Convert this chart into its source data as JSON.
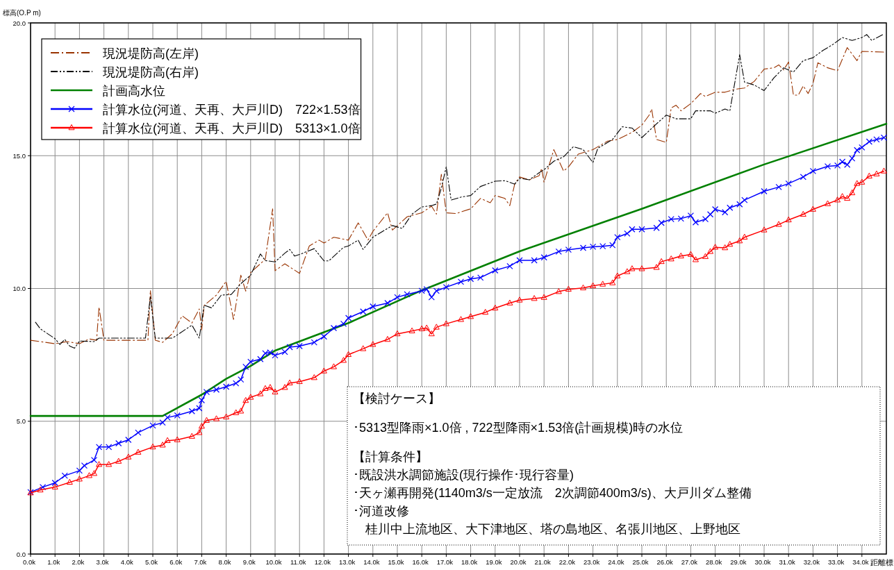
{
  "chart_data": {
    "type": "line",
    "xlabel": "距離標",
    "ylabel": "標高(O.P m)",
    "xlim": [
      0,
      35
    ],
    "ylim": [
      0,
      20
    ],
    "xticks": [
      {
        "value": 0,
        "label": "0.0k"
      },
      {
        "value": 1,
        "label": "1.0k"
      },
      {
        "value": 2,
        "label": "2.0k"
      },
      {
        "value": 3,
        "label": "3.0k"
      },
      {
        "value": 4,
        "label": "4.0k"
      },
      {
        "value": 5,
        "label": "5.0k"
      },
      {
        "value": 6,
        "label": "6.0k"
      },
      {
        "value": 7,
        "label": "7.0k"
      },
      {
        "value": 8,
        "label": "8.0k"
      },
      {
        "value": 9,
        "label": "9.0k"
      },
      {
        "value": 10,
        "label": "10.0k"
      },
      {
        "value": 11,
        "label": "11.0k"
      },
      {
        "value": 12,
        "label": "12.0k"
      },
      {
        "value": 13,
        "label": "13.0k"
      },
      {
        "value": 14,
        "label": "14.0k"
      },
      {
        "value": 15,
        "label": "15.0k"
      },
      {
        "value": 16,
        "label": "16.0k"
      },
      {
        "value": 17,
        "label": "17.0k"
      },
      {
        "value": 18,
        "label": "18.0k"
      },
      {
        "value": 19,
        "label": "19.0k"
      },
      {
        "value": 20,
        "label": "20.0k"
      },
      {
        "value": 21,
        "label": "21.0k"
      },
      {
        "value": 22,
        "label": "22.0k"
      },
      {
        "value": 23,
        "label": "23.0k"
      },
      {
        "value": 24,
        "label": "24.0k"
      },
      {
        "value": 25,
        "label": "25.0k"
      },
      {
        "value": 26,
        "label": "26.0k"
      },
      {
        "value": 27,
        "label": "27.0k"
      },
      {
        "value": 28,
        "label": "28.0k"
      },
      {
        "value": 29,
        "label": "29.0k"
      },
      {
        "value": 30,
        "label": "30.0k"
      },
      {
        "value": 31,
        "label": "31.0k"
      },
      {
        "value": 32,
        "label": "32.0k"
      },
      {
        "value": 33,
        "label": "33.0k"
      },
      {
        "value": 34,
        "label": "34.0k"
      }
    ],
    "yticks": [
      {
        "value": 0,
        "label": "0.0"
      },
      {
        "value": 5,
        "label": "5.0"
      },
      {
        "value": 10,
        "label": "10.0"
      },
      {
        "value": 15,
        "label": "15.0"
      },
      {
        "value": 20,
        "label": "20.0"
      }
    ],
    "grid": true,
    "legend": "top left",
    "series": [
      {
        "name": "現況堤防高(左岸)",
        "color": "#993300",
        "line_style": "dashed",
        "marker": "none",
        "x": [
          0,
          1,
          1.5,
          2,
          2.4,
          2.7,
          2.8,
          3,
          4,
          4.8,
          4.9,
          5.1,
          5.4,
          5.8,
          6.2,
          6.6,
          6.9,
          7,
          7.1,
          7.6,
          8,
          8.3,
          8.6,
          8.8,
          9,
          9.6,
          9.9,
          10,
          10.4,
          11,
          11.4,
          11.8,
          12,
          12.4,
          13,
          13.4,
          13.8,
          14,
          14.6,
          14.8,
          15.4,
          16,
          16.4,
          16.6,
          16.8,
          17,
          17.4,
          18,
          18.4,
          18.8,
          19,
          19.4,
          19.6,
          19.8,
          20,
          20.4,
          20.8,
          20.9,
          21,
          21.4,
          21.8,
          22,
          22.4,
          23,
          23.6,
          24,
          24.6,
          25,
          25.3,
          25.4,
          25.6,
          26,
          26.2,
          26.4,
          26.6,
          27,
          27.4,
          27.6,
          28,
          28.4,
          28.8,
          29.2,
          29.6,
          30,
          30.4,
          30.6,
          30.8,
          31,
          31.2,
          31.4,
          31.6,
          31.8,
          32,
          32.2,
          32.6,
          33,
          33.4,
          33.8,
          34,
          34.9
        ],
        "values": [
          8.05,
          7.92,
          8.0,
          7.92,
          8.1,
          8.05,
          9.3,
          8.05,
          8.05,
          8.05,
          9.93,
          8.05,
          7.97,
          8.3,
          8.97,
          8.7,
          9.23,
          8.44,
          9.36,
          9.75,
          10.27,
          8.83,
          10.5,
          9.9,
          10.6,
          11.1,
          13.0,
          10.67,
          10.93,
          10.57,
          11.6,
          11.82,
          11.71,
          11.93,
          11.82,
          12.47,
          11.82,
          12.15,
          12.85,
          12.2,
          12.7,
          12.85,
          13.1,
          12.8,
          14.3,
          12.85,
          12.82,
          13.0,
          13.39,
          13.23,
          13.5,
          13.39,
          13.12,
          13.93,
          14.2,
          14.09,
          14.25,
          14.52,
          14.0,
          15.23,
          14.42,
          14.58,
          15.06,
          15.23,
          15.55,
          15.61,
          15.88,
          16.15,
          16.53,
          16.76,
          15.61,
          15.5,
          16.8,
          16.9,
          16.69,
          16.96,
          17.34,
          17.23,
          17.39,
          17.39,
          17.5,
          17.55,
          17.8,
          18.26,
          18.31,
          18.42,
          18.23,
          18.53,
          17.28,
          17.28,
          17.63,
          17.34,
          17.72,
          18.5,
          18.31,
          18.2,
          19.07,
          18.58,
          18.93,
          18.9
        ]
      },
      {
        "name": "現況堤防高(右岸)",
        "color": "#000000",
        "line_style": "dotted",
        "marker": "none",
        "x": [
          0.2,
          0.4,
          1,
          1.2,
          1.4,
          1.6,
          1.8,
          2,
          2.6,
          2.8,
          4.7,
          4.9,
          5.1,
          5.8,
          6.6,
          6.9,
          7.1,
          7.4,
          7.8,
          8.2,
          8.6,
          9,
          9.4,
          9.6,
          10,
          10.4,
          10.6,
          10.8,
          11,
          11.6,
          12,
          12.2,
          12.8,
          13,
          13.4,
          13.6,
          14,
          14.4,
          14.8,
          15.2,
          15.6,
          16,
          16.4,
          16.6,
          16.8,
          17,
          17.2,
          17.6,
          18,
          18.4,
          19,
          19.4,
          19.8,
          20,
          20.4,
          20.8,
          21,
          21.4,
          21.8,
          22.2,
          22.6,
          23,
          23.2,
          23.8,
          24.2,
          24.6,
          25,
          25.6,
          26,
          26.4,
          27,
          27.2,
          27.8,
          28,
          28.4,
          28.6,
          29,
          29.2,
          29.6,
          30,
          30.4,
          30.8,
          31.2,
          31.6,
          32,
          32.4,
          32.8,
          33.2,
          33.6,
          34,
          34.2,
          34.4,
          34.9
        ],
        "values": [
          8.73,
          8.48,
          8.11,
          7.89,
          8.08,
          7.83,
          7.75,
          8.02,
          8.0,
          8.13,
          8.13,
          9.7,
          8.13,
          8.13,
          8.62,
          8.13,
          9.37,
          9.27,
          9.75,
          9.77,
          10.18,
          10.5,
          11.3,
          11.05,
          11.0,
          11.33,
          11.47,
          11.22,
          11.28,
          11.5,
          11.04,
          11.04,
          11.55,
          11.6,
          11.82,
          11.47,
          11.93,
          12.15,
          12.37,
          12.26,
          12.8,
          13.07,
          13.12,
          13.18,
          13.78,
          14.58,
          13.33,
          13.44,
          13.5,
          13.84,
          14.04,
          14.06,
          13.93,
          14.15,
          14.09,
          14.36,
          14.47,
          14.79,
          14.96,
          15.34,
          15.23,
          14.74,
          15.28,
          15.61,
          16.09,
          16.04,
          15.68,
          16.2,
          16.53,
          16.39,
          16.39,
          16.69,
          16.69,
          16.6,
          16.76,
          16.69,
          18.8,
          17.77,
          17.66,
          17.45,
          17.93,
          18.31,
          18.15,
          18.58,
          18.69,
          18.96,
          19.18,
          19.45,
          19.34,
          19.45,
          19.56,
          19.34,
          19.58
        ]
      },
      {
        "name": "計画高水位",
        "color": "#008000",
        "line_style": "solid",
        "marker": "none",
        "x": [
          0,
          5.4,
          7,
          8,
          9,
          10,
          13,
          16,
          20,
          25,
          30,
          35
        ],
        "values": [
          5.2,
          5.2,
          6.0,
          6.6,
          7.08,
          7.66,
          8.7,
          9.93,
          11.4,
          13.0,
          14.67,
          16.2
        ]
      },
      {
        "name": "計算水位(河道、天再、大戸川D)　722×1.53倍",
        "color": "#0000ff",
        "line_style": "solid",
        "marker": "cross",
        "x": [
          0,
          0.5,
          1,
          1.4,
          2,
          2.2,
          2.6,
          2.8,
          3.2,
          3.6,
          4,
          4.4,
          5,
          5.4,
          5.6,
          6,
          6.6,
          6.9,
          7,
          7.2,
          7.6,
          8,
          8.4,
          8.6,
          8.8,
          9,
          9.4,
          9.6,
          9.8,
          10,
          10.4,
          10.6,
          11,
          11.6,
          12,
          12.4,
          12.8,
          13,
          13.6,
          14,
          14.6,
          15,
          15.4,
          16,
          16.2,
          16.4,
          16.6,
          17,
          17.6,
          18,
          18.4,
          19,
          19.6,
          20,
          20.6,
          21,
          21.6,
          22,
          22.6,
          23,
          23.4,
          23.8,
          24,
          24.4,
          24.6,
          25,
          25.6,
          25.8,
          26.2,
          26.6,
          27,
          27.2,
          27.6,
          27.8,
          28,
          28.4,
          28.6,
          29,
          29.2,
          30,
          30.6,
          31,
          31.6,
          32,
          32.6,
          33,
          33.2,
          33.4,
          33.6,
          33.8,
          34,
          34.3,
          34.6,
          34.9
        ],
        "values": [
          2.33,
          2.52,
          2.68,
          2.95,
          3.14,
          3.33,
          3.54,
          4.03,
          4.03,
          4.17,
          4.3,
          4.57,
          4.84,
          4.95,
          5.14,
          5.22,
          5.38,
          5.49,
          5.79,
          6.1,
          6.19,
          6.3,
          6.43,
          6.57,
          7.05,
          7.24,
          7.34,
          7.56,
          7.59,
          7.48,
          7.61,
          7.79,
          7.83,
          7.97,
          8.19,
          8.51,
          8.67,
          8.89,
          9.13,
          9.32,
          9.45,
          9.67,
          9.78,
          9.91,
          9.97,
          9.67,
          9.91,
          10.05,
          10.25,
          10.36,
          10.41,
          10.68,
          10.84,
          11.06,
          11.06,
          11.17,
          11.39,
          11.46,
          11.53,
          11.57,
          11.59,
          11.63,
          11.93,
          12.07,
          12.23,
          12.23,
          12.28,
          12.47,
          12.61,
          12.63,
          12.74,
          12.49,
          12.61,
          12.79,
          12.98,
          12.87,
          13.04,
          13.17,
          13.33,
          13.66,
          13.82,
          13.95,
          14.2,
          14.42,
          14.6,
          14.63,
          14.77,
          14.66,
          14.9,
          15.21,
          15.31,
          15.53,
          15.61,
          15.68
        ]
      },
      {
        "name": "計算水位(河道、天再、大戸川D)　5313×1.0倍",
        "color": "#ff0000",
        "line_style": "solid",
        "marker": "triangle",
        "x": [
          0,
          0.4,
          1,
          1.6,
          2,
          2.4,
          2.6,
          2.8,
          3.2,
          3.6,
          4,
          4.4,
          5,
          5.4,
          5.6,
          6,
          6.6,
          6.9,
          7,
          7.2,
          7.6,
          8,
          8.4,
          8.6,
          8.8,
          9,
          9.4,
          9.6,
          9.8,
          10,
          10.4,
          10.6,
          11,
          11.6,
          12,
          12.4,
          12.8,
          13,
          13.6,
          14,
          14.6,
          15,
          15.6,
          16,
          16.2,
          16.4,
          16.6,
          17,
          17.6,
          18,
          18.6,
          19,
          19.6,
          20,
          20.6,
          21,
          21.6,
          22,
          22.6,
          23,
          23.4,
          23.8,
          24,
          24.4,
          24.6,
          25,
          25.6,
          25.8,
          26.2,
          26.6,
          27,
          27.2,
          27.6,
          27.8,
          28,
          28.4,
          28.6,
          29,
          29.2,
          30,
          30.6,
          31,
          31.6,
          32,
          32.6,
          33,
          33.2,
          33.4,
          33.6,
          33.8,
          34,
          34.3,
          34.6,
          34.9
        ],
        "values": [
          2.3,
          2.41,
          2.52,
          2.7,
          2.82,
          2.95,
          3.03,
          3.37,
          3.37,
          3.49,
          3.65,
          3.83,
          4.03,
          4.1,
          4.27,
          4.3,
          4.43,
          4.57,
          4.81,
          5.03,
          5.09,
          5.16,
          5.32,
          5.38,
          5.78,
          5.9,
          6.03,
          6.23,
          6.27,
          6.1,
          6.27,
          6.44,
          6.49,
          6.64,
          6.89,
          7.05,
          7.29,
          7.51,
          7.73,
          7.89,
          8.08,
          8.29,
          8.4,
          8.48,
          8.51,
          8.29,
          8.54,
          8.67,
          8.83,
          8.94,
          9.1,
          9.26,
          9.45,
          9.56,
          9.62,
          9.66,
          9.88,
          9.97,
          10.02,
          10.1,
          10.16,
          10.21,
          10.47,
          10.63,
          10.74,
          10.74,
          10.79,
          11.01,
          11.11,
          11.22,
          11.28,
          11.08,
          11.2,
          11.39,
          11.55,
          11.53,
          11.66,
          11.79,
          11.93,
          12.2,
          12.41,
          12.58,
          12.79,
          12.98,
          13.19,
          13.33,
          13.46,
          13.39,
          13.6,
          13.95,
          14.0,
          14.23,
          14.31,
          14.42
        ]
      }
    ],
    "annotations": [
      "【検討ケース】",
      "･5313型降雨×1.0倍 , 722型降雨×1.53倍(計画規模)時の水位",
      "【計算条件】",
      "･既設洪水調節施設(現行操作･現行容量)",
      "･天ヶ瀬再開発(1140m3/s一定放流　2次調節400m3/s)、大戸川ダム整備",
      "･河道改修",
      "　桂川中上流地区、大下津地区、塔の島地区、名張川地区、上野地区"
    ]
  }
}
